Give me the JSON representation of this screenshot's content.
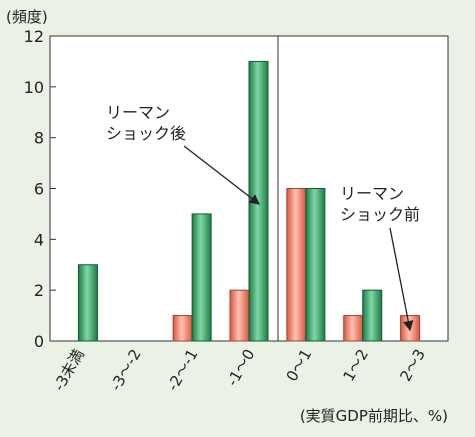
{
  "chart_data": {
    "type": "bar",
    "ylabel": "(頻度)",
    "xlabel": "(実質GDP前期比、%)",
    "ylim": [
      0,
      12
    ],
    "yticks": [
      0,
      2,
      4,
      6,
      8,
      10,
      12
    ],
    "categories": [
      "-3未満",
      "-3～-2",
      "-2～-1",
      "-1～0",
      "0～1",
      "1～2",
      "2～3"
    ],
    "series": [
      {
        "name": "リーマンショック前",
        "color": "#f08b78",
        "values": [
          0,
          0,
          1,
          2,
          6,
          1,
          1
        ]
      },
      {
        "name": "リーマンショック後",
        "color": "#2fa86a",
        "values": [
          3,
          0,
          5,
          11,
          6,
          2,
          0
        ]
      }
    ],
    "annotations": [
      {
        "lines": [
          "リーマン",
          "ショック後"
        ]
      },
      {
        "lines": [
          "リーマン",
          "ショック前"
        ]
      }
    ]
  }
}
